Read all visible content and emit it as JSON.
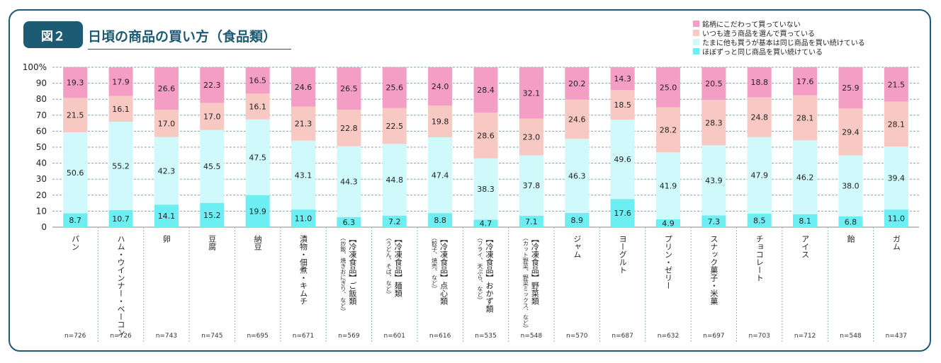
{
  "figure": {
    "badge": "図２",
    "title": "日頃の商品の買い方（食品類）"
  },
  "colors": {
    "brand": "#1d5a73",
    "s1": "#f59ec5",
    "s2": "#f8c8c3",
    "s3": "#cff9fb",
    "s4": "#6ceef2"
  },
  "chart_data": {
    "type": "bar",
    "stacked": true,
    "orientation": "vertical",
    "ylim": [
      0,
      100
    ],
    "yticks": [
      "0",
      "10",
      "20",
      "30",
      "40",
      "50",
      "60",
      "70",
      "80",
      "90",
      "100%"
    ],
    "legend_position": "top-right",
    "categories": [
      {
        "label": "パン",
        "sub": "",
        "n": "n=726"
      },
      {
        "label": "ハム・ウインナー・ベーコン",
        "sub": "",
        "n": "n=726"
      },
      {
        "label": "卵",
        "sub": "",
        "n": "n=743"
      },
      {
        "label": "豆腐",
        "sub": "",
        "n": "n=745"
      },
      {
        "label": "納豆",
        "sub": "",
        "n": "n=695"
      },
      {
        "label": "漬物・佃煮・キムチ",
        "sub": "",
        "n": "n=671"
      },
      {
        "label": "【冷凍食品】ご飯類",
        "sub": "（炒飯、焼きおにぎり、など）",
        "n": "n=569"
      },
      {
        "label": "【冷凍食品】麺類",
        "sub": "（うどん、そば、など）",
        "n": "n=601"
      },
      {
        "label": "【冷凍食品】点心類",
        "sub": "（餃子、焼売、など）",
        "n": "n=616"
      },
      {
        "label": "【冷凍食品】おかず類",
        "sub": "（フライ、天ぷら、など）",
        "n": "n=535"
      },
      {
        "label": "【冷凍食品】野菜類",
        "sub": "（カット野菜、野菜ミックス、など）",
        "n": "n=548"
      },
      {
        "label": "ジャム",
        "sub": "",
        "n": "n=570"
      },
      {
        "label": "ヨーグルト",
        "sub": "",
        "n": "n=687"
      },
      {
        "label": "プリン・ゼリー",
        "sub": "",
        "n": "n=632"
      },
      {
        "label": "スナック菓子・米菓",
        "sub": "",
        "n": "n=697"
      },
      {
        "label": "チョコレート",
        "sub": "",
        "n": "n=703"
      },
      {
        "label": "アイス",
        "sub": "",
        "n": "n=712"
      },
      {
        "label": "飴",
        "sub": "",
        "n": "n=548"
      },
      {
        "label": "ガム",
        "sub": "",
        "n": "n=437"
      }
    ],
    "series": [
      {
        "name": "ほぼずっと同じ商品を買い続けている",
        "color": "#6ceef2",
        "values": [
          "8.7",
          "10.7",
          "14.1",
          "15.2",
          "19.9",
          "11.0",
          "6.3",
          "7.2",
          "8.8",
          "4.7",
          "7.1",
          "8.9",
          "17.6",
          "4.9",
          "7.3",
          "8.5",
          "8.1",
          "6.8",
          "11.0"
        ]
      },
      {
        "name": "たまに他も買うが基本は同じ商品を買い続けている",
        "color": "#cff9fb",
        "values": [
          "50.6",
          "55.2",
          "42.3",
          "45.5",
          "47.5",
          "43.1",
          "44.3",
          "44.8",
          "47.4",
          "38.3",
          "37.8",
          "46.3",
          "49.6",
          "41.9",
          "43.9",
          "47.9",
          "46.2",
          "38.0",
          "39.4"
        ]
      },
      {
        "name": "いつも違う商品を選んで買っている",
        "color": "#f8c8c3",
        "values": [
          "21.5",
          "16.1",
          "17.0",
          "17.0",
          "16.1",
          "21.3",
          "22.8",
          "22.5",
          "19.8",
          "28.6",
          "23.0",
          "24.6",
          "18.5",
          "28.2",
          "28.3",
          "24.8",
          "28.1",
          "29.4",
          "28.1"
        ]
      },
      {
        "name": "銘柄にこだわって買っていない",
        "color": "#f59ec5",
        "values": [
          "19.3",
          "17.9",
          "26.6",
          "22.3",
          "16.5",
          "24.6",
          "26.5",
          "25.6",
          "24.0",
          "28.4",
          "32.1",
          "20.2",
          "14.3",
          "25.0",
          "20.5",
          "18.8",
          "17.6",
          "25.9",
          "21.5"
        ]
      }
    ],
    "legend_order": [
      3,
      2,
      1,
      0
    ]
  }
}
